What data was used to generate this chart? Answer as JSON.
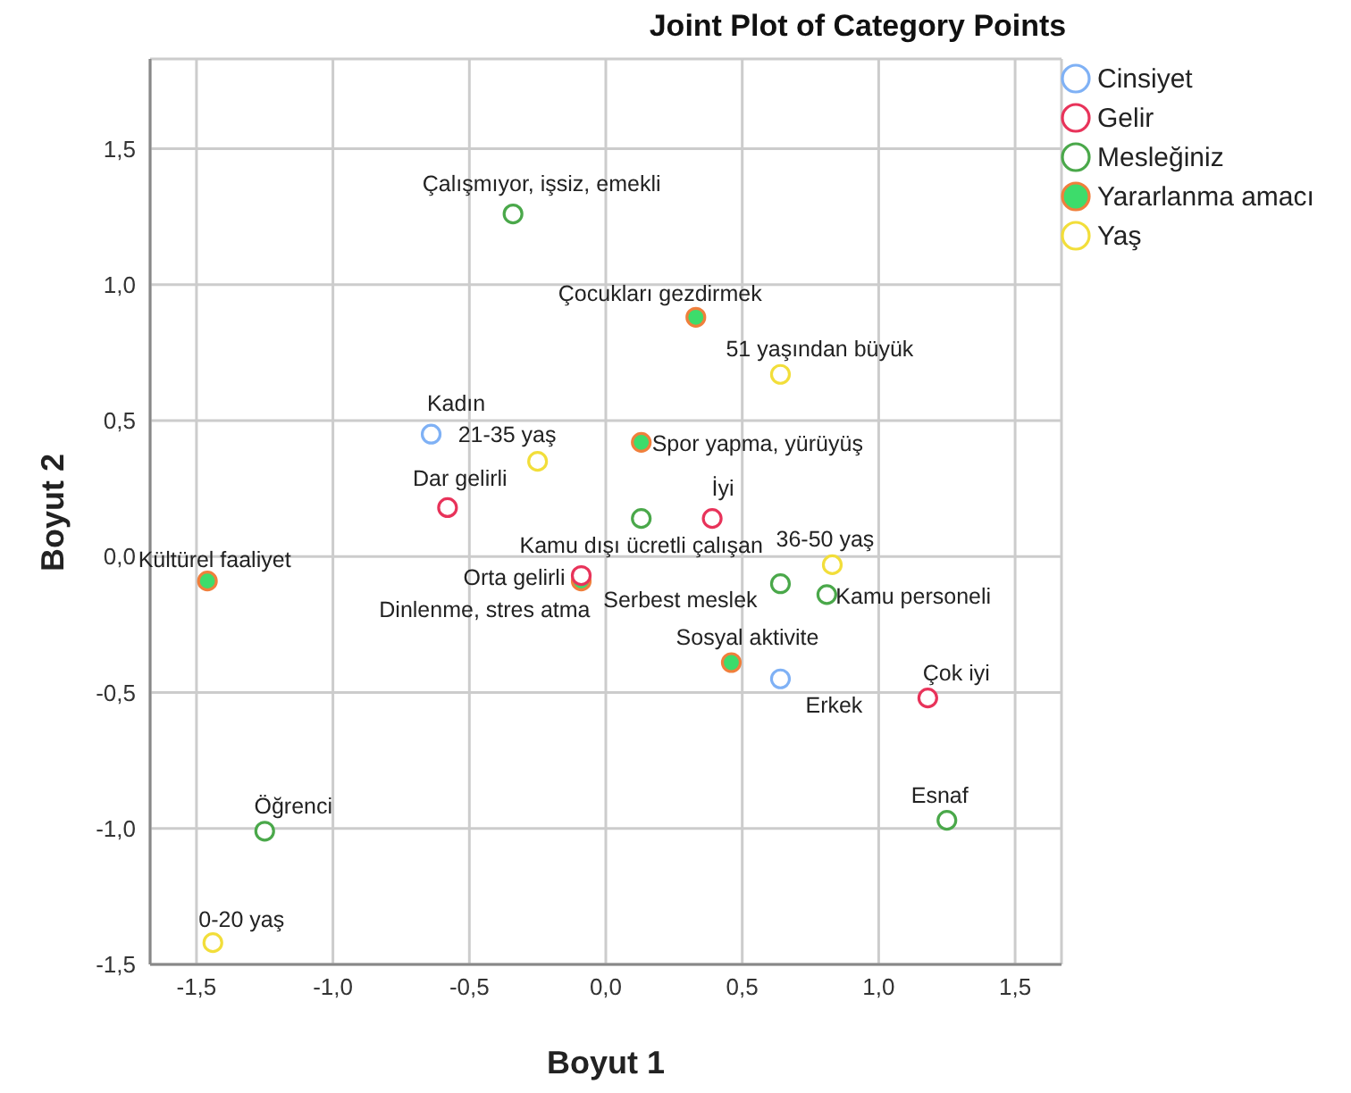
{
  "chart_data": {
    "type": "scatter",
    "title": "Joint Plot of Category Points",
    "xlabel": "Boyut 1",
    "ylabel": "Boyut 2",
    "xlim": [
      -1.67,
      1.67
    ],
    "ylim": [
      -1.5,
      1.83
    ],
    "xticks": [
      {
        "value": -1.5,
        "label": "-1,5"
      },
      {
        "value": -1.0,
        "label": "-1,0"
      },
      {
        "value": -0.5,
        "label": "-0,5"
      },
      {
        "value": 0,
        "label": "0,0"
      },
      {
        "value": 0.5,
        "label": "0,5"
      },
      {
        "value": 1.0,
        "label": "1,0"
      },
      {
        "value": 1.5,
        "label": "1,5"
      }
    ],
    "yticks": [
      {
        "value": -1.5,
        "label": "-1,5"
      },
      {
        "value": -1.0,
        "label": "-1,0"
      },
      {
        "value": -0.5,
        "label": "-0,5"
      },
      {
        "value": 0,
        "label": "0,0"
      },
      {
        "value": 0.5,
        "label": "0,5"
      },
      {
        "value": 1.0,
        "label": "1,0"
      },
      {
        "value": 1.5,
        "label": "1,5"
      }
    ],
    "grid": true,
    "legend": "top right",
    "marker": "circle",
    "series": [
      {
        "name": "Cinsiyet",
        "color": "#7fb1f5",
        "x": [
          -0.64,
          0.64
        ],
        "values": [
          0.45,
          -0.45
        ]
      },
      {
        "name": "Gelir",
        "color": "#e8335a",
        "x": [
          -0.58,
          0.39,
          -0.09,
          1.18
        ],
        "values": [
          0.18,
          0.14,
          -0.07,
          -0.52
        ]
      },
      {
        "name": "Mesleğiniz",
        "color": "#4aa84a",
        "x": [
          -0.34,
          0.13,
          0.64,
          0.81,
          1.25,
          -1.25
        ],
        "values": [
          1.26,
          0.14,
          -0.1,
          -0.14,
          -0.97,
          -1.01
        ]
      },
      {
        "name": "Yararlanma amacı",
        "color": "#3ddc6b",
        "x": [
          0.33,
          0.13,
          -1.46,
          -0.09,
          0.46
        ],
        "values": [
          0.88,
          0.42,
          -0.09,
          -0.09,
          -0.39
        ]
      },
      {
        "name": "Yaş",
        "color": "#f2de3a",
        "x": [
          0.64,
          -0.25,
          0.83,
          -1.44
        ],
        "values": [
          0.67,
          0.35,
          -0.03,
          -1.42
        ]
      }
    ],
    "annotations": [
      {
        "text": "Kadın",
        "x": -0.64,
        "y": 0.45
      },
      {
        "text": "Erkek",
        "x": 0.64,
        "y": -0.45
      },
      {
        "text": "Dar gelirli",
        "x": -0.58,
        "y": 0.18
      },
      {
        "text": "İyi",
        "x": 0.39,
        "y": 0.14
      },
      {
        "text": "Orta gelirli",
        "x": -0.09,
        "y": -0.07
      },
      {
        "text": "Çok iyi",
        "x": 1.18,
        "y": -0.52
      },
      {
        "text": "Çalışmıyor, işsiz, emekli",
        "x": -0.34,
        "y": 1.26
      },
      {
        "text": "Kamu dışı ücretli çalışan",
        "x": 0.13,
        "y": 0.14
      },
      {
        "text": "Serbest meslek",
        "x": 0.64,
        "y": -0.1
      },
      {
        "text": "Kamu personeli",
        "x": 0.81,
        "y": -0.14
      },
      {
        "text": "Esnaf",
        "x": 1.25,
        "y": -0.97
      },
      {
        "text": "Öğrenci",
        "x": -1.25,
        "y": -1.01
      },
      {
        "text": "Çocukları gezdirmek",
        "x": 0.33,
        "y": 0.88
      },
      {
        "text": "Spor yapma, yürüyüş",
        "x": 0.13,
        "y": 0.42
      },
      {
        "text": "Kültürel faaliyet",
        "x": -1.46,
        "y": -0.09
      },
      {
        "text": "Dinlenme, stres atma",
        "x": -0.09,
        "y": -0.09
      },
      {
        "text": "Sosyal aktivite",
        "x": 0.46,
        "y": -0.39
      },
      {
        "text": "51 yaşından büyük",
        "x": 0.64,
        "y": 0.67
      },
      {
        "text": "21-35 yaş",
        "x": -0.25,
        "y": 0.35
      },
      {
        "text": "36-50 yaş",
        "x": 0.83,
        "y": -0.03
      },
      {
        "text": "0-20 yaş",
        "x": -1.44,
        "y": -1.42
      }
    ]
  }
}
